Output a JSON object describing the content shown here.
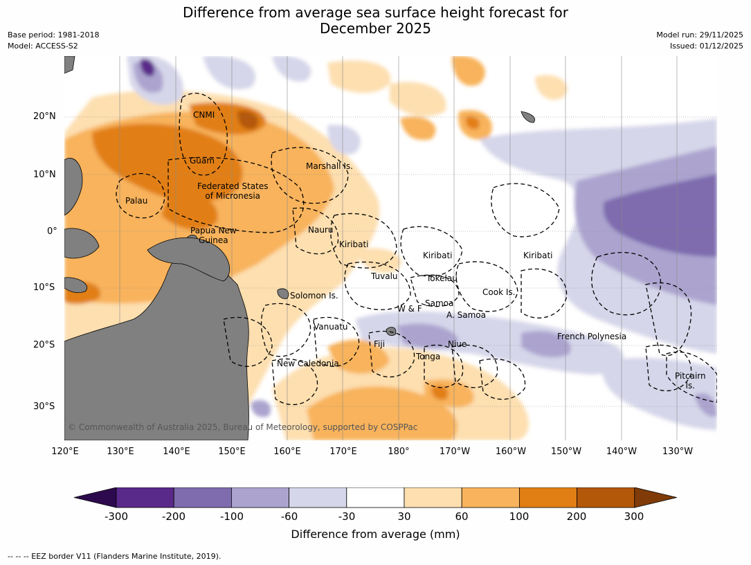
{
  "title_line1": "Difference from average sea surface height forecast for",
  "title_line2": "December 2025",
  "meta_left": {
    "base_period": "Base period: 1981-2018",
    "model": "Model: ACCESS-S2"
  },
  "meta_right": {
    "model_run": "Model run: 29/11/2025",
    "issued": "Issued: 01/12/2025"
  },
  "lat_labels": [
    "20°N",
    "10°N",
    "0°",
    "10°S",
    "20°S",
    "30°S"
  ],
  "lon_labels": [
    "120°E",
    "130°E",
    "140°E",
    "150°E",
    "160°E",
    "170°E",
    "180°",
    "170°W",
    "160°W",
    "150°W",
    "140°W",
    "130°W"
  ],
  "places": {
    "cnmi": "CNMI",
    "guam": "Guam",
    "marshall": "Marshall Is.",
    "fsm1": "Federated States",
    "fsm2": "of Micronesia",
    "palau": "Palau",
    "png1": "Papua New",
    "png2": "Guinea",
    "nauru": "Nauru",
    "kiribati_w": "Kiribati",
    "kiribati_c": "Kiribati",
    "kiribati_e": "Kiribati",
    "tuvalu": "Tuvalu",
    "tokelau": "Tokelau",
    "cook": "Cook Is.",
    "solomon": "Solomon Is.",
    "wf": "W & F",
    "samoa": "Samoa",
    "asamoa": "A. Samoa",
    "vanuatu": "Vanuatu",
    "fiji": "Fiji",
    "niue": "Niue",
    "tonga": "Tonga",
    "newcal": "New Caledonia",
    "frpoly": "French Polynesia",
    "pitcairn1": "Pitcairn",
    "pitcairn2": "Is."
  },
  "copyright": "© Commonwealth of Australia 2025, Bureau of Meteorology, supported by COSPPac",
  "colorbar": {
    "ticks": [
      "-300",
      "-200",
      "-100",
      "-60",
      "-30",
      "30",
      "60",
      "100",
      "200",
      "300"
    ],
    "colors": [
      "#5a2a8a",
      "#7e6cae",
      "#aca4cf",
      "#d6d6ea",
      "#ffffff",
      "#fddfb0",
      "#f8b35c",
      "#e17f14",
      "#b35808"
    ],
    "under_color": "#2d0a4e",
    "over_color": "#7f3b08",
    "label": "Difference from average (mm)"
  },
  "footnote": "--  --  -- EEZ border V11 (Flanders Marine Institute, 2019)."
}
